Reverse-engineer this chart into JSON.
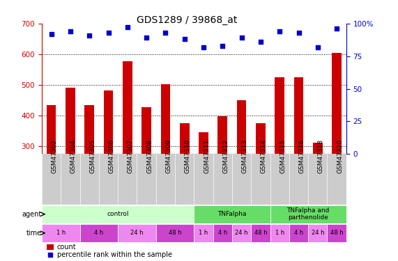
{
  "title": "GDS1289 / 39868_at",
  "samples": [
    "GSM47302",
    "GSM47304",
    "GSM47305",
    "GSM47306",
    "GSM47307",
    "GSM47308",
    "GSM47309",
    "GSM47310",
    "GSM47311",
    "GSM47312",
    "GSM47313",
    "GSM47314",
    "GSM47315",
    "GSM47316",
    "GSM47318",
    "GSM47320"
  ],
  "count_values": [
    435,
    492,
    435,
    482,
    578,
    428,
    503,
    375,
    346,
    397,
    450,
    375,
    525,
    524,
    311,
    604
  ],
  "percentile_values": [
    92,
    94,
    91,
    93,
    97,
    89,
    93,
    88,
    82,
    83,
    89,
    86,
    94,
    93,
    82,
    96
  ],
  "ylim_left": [
    275,
    700
  ],
  "ylim_right": [
    0,
    100
  ],
  "yticks_left": [
    300,
    400,
    500,
    600,
    700
  ],
  "yticks_right": [
    0,
    25,
    50,
    75,
    100
  ],
  "bar_color": "#cc0000",
  "dot_color": "#0000cc",
  "sample_bg_color": "#cccccc",
  "agent_groups": [
    {
      "label": "control",
      "start": 0,
      "end": 8,
      "color": "#ccffcc"
    },
    {
      "label": "TNFalpha",
      "start": 8,
      "end": 12,
      "color": "#66dd66"
    },
    {
      "label": "TNFalpha and\nparthenolide",
      "start": 12,
      "end": 16,
      "color": "#66dd66"
    }
  ],
  "time_groups": [
    {
      "label": "1 h",
      "start": 0,
      "end": 2,
      "color": "#ee88ee"
    },
    {
      "label": "4 h",
      "start": 2,
      "end": 4,
      "color": "#cc44cc"
    },
    {
      "label": "24 h",
      "start": 4,
      "end": 6,
      "color": "#ee88ee"
    },
    {
      "label": "48 h",
      "start": 6,
      "end": 8,
      "color": "#cc44cc"
    },
    {
      "label": "1 h",
      "start": 8,
      "end": 9,
      "color": "#ee88ee"
    },
    {
      "label": "4 h",
      "start": 9,
      "end": 10,
      "color": "#cc44cc"
    },
    {
      "label": "24 h",
      "start": 10,
      "end": 11,
      "color": "#ee88ee"
    },
    {
      "label": "48 h",
      "start": 11,
      "end": 12,
      "color": "#cc44cc"
    },
    {
      "label": "1 h",
      "start": 12,
      "end": 13,
      "color": "#ee88ee"
    },
    {
      "label": "4 h",
      "start": 13,
      "end": 14,
      "color": "#cc44cc"
    },
    {
      "label": "24 h",
      "start": 14,
      "end": 15,
      "color": "#ee88ee"
    },
    {
      "label": "48 h",
      "start": 15,
      "end": 16,
      "color": "#cc44cc"
    }
  ],
  "legend_count_color": "#cc0000",
  "legend_dot_color": "#0000cc",
  "title_fontsize": 10,
  "tick_fontsize": 7.5,
  "sample_fontsize": 6.5,
  "row_label_fontsize": 7
}
